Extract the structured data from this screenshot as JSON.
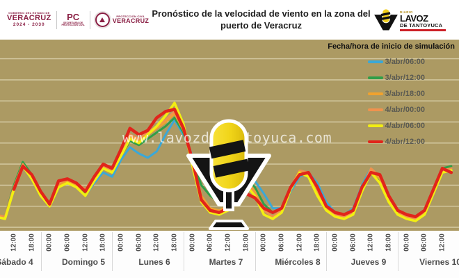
{
  "header": {
    "gov": {
      "line1": "GOBIERNO DEL ESTADO DE",
      "name": "VERACRUZ",
      "years": "2024 - 2030",
      "pc": "PC",
      "pc_sub1": "SECRETARÍA DE",
      "pc_sub2": "PROTECCIÓN CIVIL",
      "seal_sub": "PROTECCIÓN CIVIL",
      "seal_name": "VERACRUZ"
    },
    "title_line1": "Pronóstico de la velocidad de viento en la zona del",
    "title_line2": "puerto de Veracruz",
    "lavoz": {
      "diario": "DIARIO",
      "name1": "LAVOZ",
      "name2": "DE TANTOYUCA"
    }
  },
  "watermark": "www.lavozdetantoyuca.com",
  "legend": {
    "title": "Fecha/hora de inicio de simulación",
    "entries": [
      {
        "label": "3/abr/06:00",
        "color": "#3aa8d8"
      },
      {
        "label": "3/abr/12:00",
        "color": "#2f9e48"
      },
      {
        "label": "3/abr/18:00",
        "color": "#f0a22e"
      },
      {
        "label": "4/abr/00:00",
        "color": "#f0924e"
      },
      {
        "label": "4/abr/06:00",
        "color": "#f2ee12"
      },
      {
        "label": "4/abr/12:00",
        "color": "#e1251b"
      }
    ]
  },
  "colors": {
    "plot_bg": "#ac9a63",
    "gridline": "#d6cca6",
    "axis_text": "#4d4d4d",
    "maroon": "#8a1f44",
    "logo_yellow": "#f2cf1d",
    "logo_red": "#cc2027"
  },
  "chart_data": {
    "type": "line",
    "title": "Pronóstico de la velocidad de viento en la zona del puerto de Veracruz",
    "xlabel": "",
    "ylabel": "",
    "y_axis_labels_visible": false,
    "ylim": [
      0,
      9
    ],
    "gridline_values": [
      0,
      1,
      2,
      3,
      4,
      5,
      6,
      7,
      8
    ],
    "x_hours_since": "sábado 4, 06:00",
    "x_hours": [
      0,
      3,
      6,
      9,
      12,
      15,
      18,
      21,
      24,
      27,
      30,
      33,
      36,
      39,
      42,
      45,
      48,
      51,
      54,
      57,
      60,
      63,
      66,
      69,
      72,
      75,
      78,
      81,
      84,
      87,
      90,
      93,
      96,
      99,
      102,
      105,
      108,
      111,
      114,
      117,
      120,
      123,
      126,
      129,
      132,
      135,
      138,
      141,
      144,
      147,
      150,
      153
    ],
    "series": [
      {
        "name": "3/abr/06:00",
        "color": "#3aa8d8",
        "width": 3,
        "values": [
          0.5,
          0.4,
          1.8,
          3.0,
          2.3,
          1.5,
          1.0,
          1.9,
          2.1,
          1.9,
          1.5,
          2.1,
          2.6,
          2.4,
          3.2,
          3.8,
          3.5,
          3.3,
          3.6,
          4.4,
          5.1,
          4.4,
          3.4,
          2.6,
          2.4,
          2.2,
          2.0,
          2.3,
          2.6,
          2.2,
          1.6,
          0.9,
          0.9,
          1.7,
          2.4,
          2.6,
          2.1,
          1.2,
          0.7,
          0.6,
          0.9,
          2.0,
          2.8,
          2.3,
          1.4,
          0.8,
          0.6,
          0.5,
          0.8,
          1.7,
          2.6,
          2.7
        ]
      },
      {
        "name": "3/abr/12:00",
        "color": "#2f9e48",
        "width": 3,
        "values": [
          0.6,
          0.5,
          2.0,
          3.1,
          2.5,
          1.6,
          1.1,
          2.0,
          2.2,
          2.0,
          1.6,
          2.2,
          2.8,
          2.6,
          3.4,
          4.1,
          3.9,
          4.2,
          4.5,
          4.8,
          5.2,
          4.5,
          3.2,
          2.0,
          1.5,
          1.2,
          1.3,
          1.9,
          2.4,
          1.9,
          1.1,
          0.7,
          0.9,
          1.9,
          2.7,
          2.4,
          1.6,
          0.9,
          0.6,
          0.5,
          0.7,
          1.9,
          2.7,
          2.2,
          1.3,
          0.7,
          0.5,
          0.4,
          0.7,
          1.8,
          2.8,
          2.9
        ]
      },
      {
        "name": "3/abr/18:00",
        "color": "#f0a22e",
        "width": 3,
        "values": [
          0.6,
          0.5,
          1.9,
          3.0,
          2.4,
          1.6,
          1.1,
          2.0,
          2.2,
          2.0,
          1.7,
          2.3,
          2.8,
          2.6,
          3.5,
          4.3,
          4.1,
          4.4,
          4.7,
          5.0,
          5.4,
          4.6,
          3.1,
          1.5,
          0.9,
          0.8,
          1.0,
          1.7,
          2.2,
          1.7,
          0.8,
          0.5,
          0.8,
          1.8,
          2.6,
          2.5,
          1.7,
          0.9,
          0.6,
          0.5,
          0.7,
          1.8,
          2.7,
          2.3,
          1.3,
          0.7,
          0.5,
          0.4,
          0.7,
          1.7,
          2.7,
          2.8
        ]
      },
      {
        "name": "4/abr/00:00",
        "color": "#f0924e",
        "width": 3,
        "values": [
          0.6,
          0.5,
          1.9,
          3.0,
          2.4,
          1.6,
          1.1,
          2.1,
          2.3,
          2.1,
          1.8,
          2.4,
          2.9,
          2.7,
          3.6,
          4.4,
          4.2,
          4.5,
          4.8,
          5.1,
          5.5,
          4.7,
          3.0,
          1.4,
          0.8,
          0.7,
          1.0,
          1.6,
          2.1,
          1.6,
          0.8,
          0.5,
          0.8,
          1.9,
          2.7,
          2.6,
          1.8,
          1.0,
          0.6,
          0.5,
          0.7,
          1.8,
          2.8,
          2.4,
          1.4,
          0.7,
          0.5,
          0.4,
          0.7,
          1.7,
          2.7,
          2.8
        ]
      },
      {
        "name": "4/abr/06:00",
        "color": "#f2ee12",
        "width": 3.6,
        "values": [
          0.5,
          0.4,
          1.8,
          2.9,
          2.3,
          1.5,
          1.0,
          1.9,
          2.1,
          1.9,
          1.5,
          2.2,
          2.8,
          2.6,
          3.4,
          4.2,
          4.0,
          4.4,
          4.8,
          5.3,
          5.9,
          4.9,
          2.9,
          1.2,
          0.7,
          0.6,
          0.8,
          1.5,
          2.0,
          1.5,
          0.6,
          0.4,
          0.7,
          1.8,
          2.6,
          2.4,
          1.5,
          0.8,
          0.5,
          0.4,
          0.6,
          1.7,
          2.6,
          2.1,
          1.2,
          0.6,
          0.4,
          0.3,
          0.6,
          1.6,
          2.6,
          2.7
        ]
      },
      {
        "name": "4/abr/12:00",
        "color": "#e1251b",
        "width": 4.4,
        "values": [
          null,
          null,
          1.8,
          2.9,
          2.5,
          1.7,
          1.1,
          2.2,
          2.3,
          2.1,
          1.7,
          2.4,
          3.0,
          2.8,
          3.7,
          4.7,
          4.4,
          4.6,
          5.2,
          5.5,
          5.6,
          4.7,
          3.2,
          1.3,
          0.8,
          0.7,
          0.9,
          1.4,
          1.6,
          1.4,
          0.9,
          0.7,
          0.9,
          1.9,
          2.5,
          2.6,
          1.9,
          1.0,
          0.7,
          0.6,
          0.8,
          1.9,
          2.6,
          2.5,
          1.5,
          0.8,
          0.6,
          0.5,
          0.8,
          1.8,
          2.8,
          2.6
        ]
      }
    ],
    "axis": {
      "time_labels": [
        "00:00",
        "06:00",
        "12:00",
        "18:00"
      ],
      "days": [
        {
          "label": "Sábado 4",
          "center": 21
        },
        {
          "label": "Domingo 5",
          "center": 120
        },
        {
          "label": "Lunes 6",
          "center": 222
        },
        {
          "label": "Martes 7",
          "center": 325
        },
        {
          "label": "Miércoles 8",
          "center": 428
        },
        {
          "label": "Jueves 9",
          "center": 530
        },
        {
          "label": "Viernes 10",
          "center": 633
        }
      ],
      "separators_x": [
        58.5,
        161.2,
        263.8,
        366.5,
        469.2,
        571.9
      ],
      "legend_position": "upper right",
      "grid": "horizontal"
    }
  }
}
